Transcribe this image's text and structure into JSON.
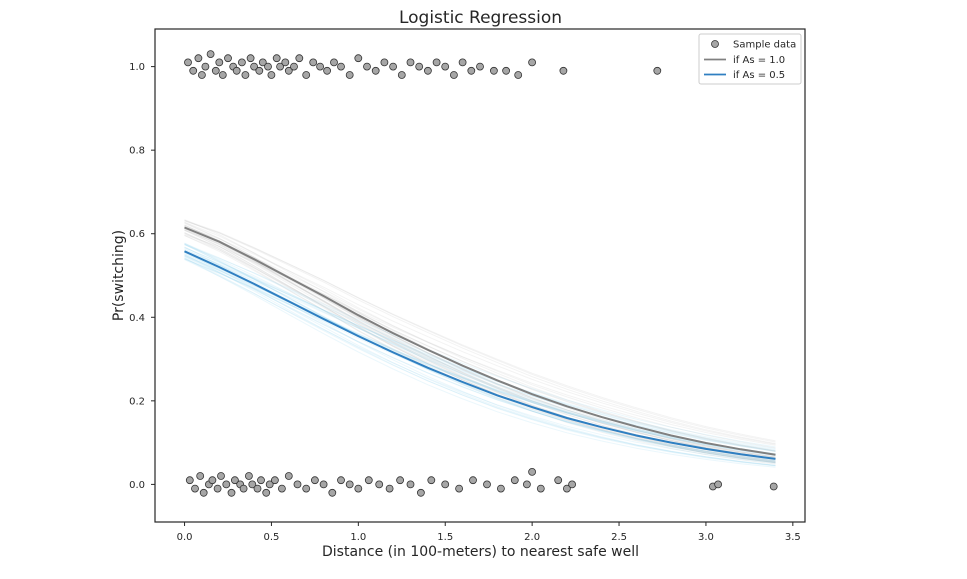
{
  "chart_data": {
    "type": "scatter",
    "title": "Logistic Regression",
    "xlabel": "Distance (in 100-meters) to nearest safe well",
    "ylabel": "Pr(switching)",
    "xlim": [
      -0.17,
      3.57
    ],
    "ylim": [
      -0.09,
      1.09
    ],
    "xticks": [
      0.0,
      0.5,
      1.0,
      1.5,
      2.0,
      2.5,
      3.0,
      3.5
    ],
    "yticks": [
      0.0,
      0.2,
      0.4,
      0.6,
      0.8,
      1.0
    ],
    "xtick_labels": [
      "0.0",
      "0.5",
      "1.0",
      "1.5",
      "2.0",
      "2.5",
      "3.0",
      "3.5"
    ],
    "ytick_labels": [
      "0.0",
      "0.2",
      "0.4",
      "0.6",
      "0.8",
      "1.0"
    ],
    "grid": false,
    "legend": {
      "position": "top-right",
      "entries": [
        "Sample data",
        "if As = 1.0",
        "if As = 0.5"
      ]
    },
    "colors": {
      "points_fill": "#a6a6a6",
      "points_edge": "#333333",
      "as_1": "#808080",
      "as_05": "#2f7fc1",
      "band_as_1": "#bdbdbd",
      "band_as_05": "#8fd0f0"
    },
    "series": [
      {
        "name": "Sample data",
        "kind": "scatter",
        "x": [
          0.02,
          0.05,
          0.08,
          0.1,
          0.12,
          0.15,
          0.18,
          0.2,
          0.22,
          0.25,
          0.28,
          0.3,
          0.33,
          0.35,
          0.38,
          0.4,
          0.43,
          0.45,
          0.48,
          0.5,
          0.53,
          0.55,
          0.58,
          0.6,
          0.63,
          0.66,
          0.7,
          0.74,
          0.78,
          0.82,
          0.86,
          0.9,
          0.95,
          1.0,
          1.05,
          1.1,
          1.15,
          1.2,
          1.25,
          1.3,
          1.35,
          1.4,
          1.45,
          1.5,
          1.55,
          1.6,
          1.65,
          1.7,
          1.78,
          1.85,
          1.92,
          2.0,
          2.18,
          2.72,
          0.03,
          0.06,
          0.09,
          0.11,
          0.14,
          0.16,
          0.19,
          0.21,
          0.24,
          0.27,
          0.29,
          0.32,
          0.34,
          0.37,
          0.39,
          0.42,
          0.44,
          0.47,
          0.49,
          0.52,
          0.56,
          0.6,
          0.65,
          0.7,
          0.75,
          0.8,
          0.85,
          0.9,
          0.95,
          1.0,
          1.06,
          1.12,
          1.18,
          1.24,
          1.3,
          1.36,
          1.42,
          1.5,
          1.58,
          1.66,
          1.74,
          1.82,
          1.9,
          1.97,
          2.0,
          2.05,
          2.15,
          2.2,
          2.23,
          3.04,
          3.07,
          3.39
        ],
        "y": [
          1.01,
          0.99,
          1.02,
          0.98,
          1.0,
          1.03,
          0.99,
          1.01,
          0.98,
          1.02,
          1.0,
          0.99,
          1.01,
          0.98,
          1.02,
          1.0,
          0.99,
          1.01,
          1.0,
          0.98,
          1.02,
          1.0,
          1.01,
          0.99,
          1.0,
          1.02,
          0.98,
          1.01,
          1.0,
          0.99,
          1.01,
          1.0,
          0.98,
          1.02,
          1.0,
          0.99,
          1.01,
          1.0,
          0.98,
          1.01,
          1.0,
          0.99,
          1.01,
          1.0,
          0.98,
          1.01,
          0.99,
          1.0,
          0.99,
          0.99,
          0.98,
          1.01,
          0.99,
          0.99,
          0.01,
          -0.01,
          0.02,
          -0.02,
          0.0,
          0.01,
          -0.01,
          0.02,
          0.0,
          -0.02,
          0.01,
          0.0,
          -0.01,
          0.02,
          0.0,
          -0.01,
          0.01,
          -0.02,
          0.0,
          0.01,
          -0.01,
          0.02,
          0.0,
          -0.01,
          0.01,
          0.0,
          -0.02,
          0.01,
          0.0,
          -0.01,
          0.01,
          0.0,
          -0.01,
          0.01,
          0.0,
          -0.02,
          0.01,
          0.0,
          -0.01,
          0.01,
          0.0,
          -0.01,
          0.01,
          0.0,
          0.03,
          -0.01,
          0.01,
          -0.01,
          0.0,
          -0.005,
          0.0,
          -0.005
        ]
      },
      {
        "name": "if As = 1.0",
        "kind": "line",
        "x": [
          0.0,
          0.2,
          0.4,
          0.6,
          0.8,
          1.0,
          1.2,
          1.4,
          1.6,
          1.8,
          2.0,
          2.2,
          2.4,
          2.6,
          2.8,
          3.0,
          3.2,
          3.4
        ],
        "y": [
          0.615,
          0.581,
          0.539,
          0.495,
          0.451,
          0.405,
          0.362,
          0.322,
          0.284,
          0.249,
          0.216,
          0.187,
          0.161,
          0.138,
          0.117,
          0.099,
          0.084,
          0.071
        ]
      },
      {
        "name": "if As = 0.5",
        "kind": "line",
        "x": [
          0.0,
          0.2,
          0.4,
          0.6,
          0.8,
          1.0,
          1.2,
          1.4,
          1.6,
          1.8,
          2.0,
          2.2,
          2.4,
          2.6,
          2.8,
          3.0,
          3.2,
          3.4
        ],
        "y": [
          0.558,
          0.52,
          0.48,
          0.438,
          0.396,
          0.355,
          0.316,
          0.279,
          0.245,
          0.213,
          0.185,
          0.159,
          0.137,
          0.117,
          0.1,
          0.085,
          0.072,
          0.061
        ]
      }
    ]
  }
}
